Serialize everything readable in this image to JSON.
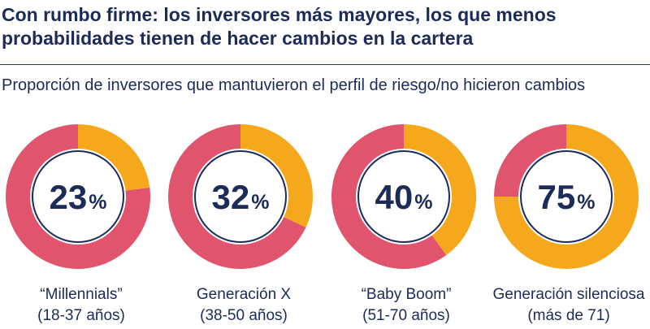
{
  "header": {
    "title": "Con rumbo firme: los inversores más mayores, los que menos probabilidades tienen de hacer cambios en la cartera",
    "subtitle": "Proporción de inversores que mantuvieron el perfil de riesgo/no hicieron cambios"
  },
  "colors": {
    "kept": "#f5a81c",
    "changed": "#e0546e",
    "text": "#1c2b57"
  },
  "chart_data": {
    "type": "pie",
    "title": "Con rumbo firme: los inversores más mayores, los que menos probabilidades tienen de hacer cambios en la cartera",
    "subtitle": "Proporción de inversores que mantuvieron el perfil de riesgo/no hicieron cambios",
    "unit": "%",
    "categories": [
      {
        "name": "“Millennials”",
        "range": "(18-37 años)",
        "value": 23
      },
      {
        "name": "Generación X",
        "range": "(38-50 años)",
        "value": 32
      },
      {
        "name": "“Baby Boom”",
        "range": "(51-70 años)",
        "value": 40
      },
      {
        "name": "Generación silenciosa",
        "range": "(más de 71)",
        "value": 75
      }
    ]
  }
}
